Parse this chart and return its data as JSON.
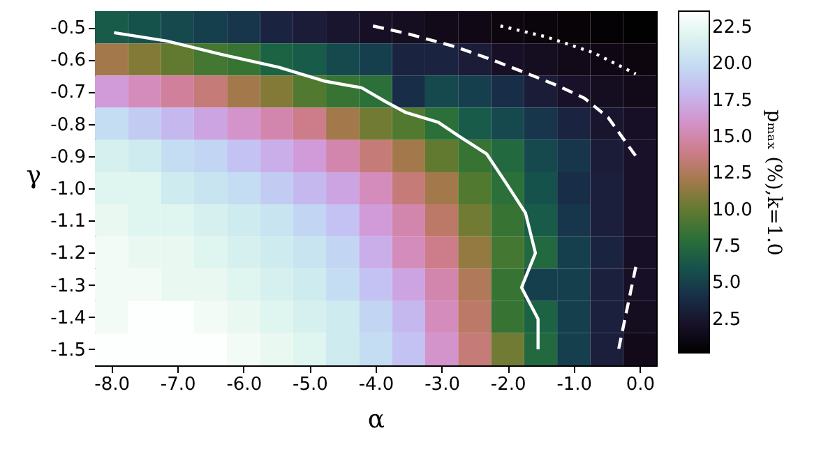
{
  "chart_data": {
    "type": "heatmap",
    "xlabel": "α",
    "ylabel": "γ",
    "clabel": "pₘₐₓ (%),k=1.0",
    "x": [
      -8.0,
      -7.5,
      -7.0,
      -6.5,
      -6.0,
      -5.5,
      -5.0,
      -4.5,
      -4.0,
      -3.5,
      -3.0,
      -2.5,
      -2.0,
      -1.5,
      -1.0,
      -0.5,
      0.0
    ],
    "ylim": [
      -1.55,
      -0.45
    ],
    "yticks": [
      -0.5,
      -0.6,
      -0.7,
      -0.8,
      -0.9,
      {
        "value": -1,
        "label": "-1.0"
      },
      -1.1,
      -1.2,
      -1.3,
      -1.4,
      -1.5
    ],
    "cells": [
      [
        6.5,
        6,
        5.5,
        5,
        4.5,
        3.5,
        3,
        2.5,
        2,
        1.8,
        1.5,
        1.3,
        1,
        0.8,
        0.6,
        0.5,
        0.3
      ],
      [
        12,
        11,
        10,
        9,
        8.5,
        7,
        6.5,
        5.5,
        5,
        3.5,
        3.5,
        3,
        2,
        1.8,
        1.5,
        1.2,
        1
      ],
      [
        16.5,
        15.5,
        14.5,
        13.5,
        12,
        11,
        9.5,
        8.5,
        8,
        4,
        5.5,
        5,
        4,
        3,
        2.2,
        1.8,
        1.5
      ],
      [
        20,
        19,
        18,
        17,
        16,
        15,
        14,
        12,
        10.5,
        9.5,
        8,
        6.5,
        5.5,
        4.5,
        3.5,
        2.5,
        2
      ],
      [
        21.5,
        21,
        20,
        19.5,
        18.5,
        17.5,
        16.5,
        15,
        13.5,
        12,
        10,
        8.5,
        7.5,
        5.5,
        4.5,
        3,
        2.2
      ],
      [
        22,
        22,
        21,
        20.5,
        20,
        19,
        18,
        17,
        15.5,
        13.5,
        12,
        9.5,
        8,
        6,
        4,
        3.2,
        2.2
      ],
      [
        22.5,
        22,
        22,
        21.5,
        21,
        20.5,
        19.5,
        18.5,
        16.5,
        15,
        13,
        10.5,
        8.5,
        6.5,
        4.5,
        3.2,
        2.2
      ],
      [
        23,
        22.5,
        22.5,
        22,
        21.5,
        21,
        20.5,
        19.5,
        17.5,
        15.5,
        14,
        11.5,
        9,
        7.5,
        5,
        3.5,
        2
      ],
      [
        23,
        23,
        22.5,
        22.5,
        22,
        21.5,
        21,
        20,
        18.5,
        17,
        15,
        12.5,
        8.5,
        5,
        5,
        3.3,
        2
      ],
      [
        23,
        23.5,
        23.5,
        23,
        22.5,
        22,
        21.5,
        21,
        19.5,
        18,
        15.5,
        13,
        8.5,
        7,
        5,
        3.3,
        1.8
      ],
      [
        23.5,
        23.5,
        23.5,
        23.5,
        23,
        22.5,
        22,
        21,
        20,
        18.5,
        16,
        13.5,
        10.5,
        7.5,
        5,
        3.2,
        1.5
      ]
    ],
    "clim": [
      0.2,
      23.6
    ],
    "cticks": [
      2.5,
      {
        "value": 5,
        "label": "5.0"
      },
      7.5,
      {
        "value": 10,
        "label": "10.0"
      },
      12.5,
      {
        "value": 15,
        "label": "15.0"
      },
      17.5,
      {
        "value": 20,
        "label": "20.0"
      },
      22.5
    ],
    "xlim": [
      -8.25,
      0.25
    ],
    "xticks": [
      {
        "value": -8,
        "label": "-8.0"
      },
      {
        "value": -7,
        "label": "-7.0"
      },
      {
        "value": -6,
        "label": "-6.0"
      },
      {
        "value": -5,
        "label": "-5.0"
      },
      {
        "value": -4,
        "label": "-4.0"
      },
      {
        "value": -3,
        "label": "-3.0"
      },
      {
        "value": -2,
        "label": "-2.0"
      },
      {
        "value": -1,
        "label": "-1.0"
      },
      {
        "value": 0,
        "label": "0.0"
      }
    ],
    "series": [
      {
        "type": "line",
        "color": "#ffffff",
        "line_style": "solid",
        "x": [
          -7.96,
          -7.16,
          -6.32,
          -5.47,
          -4.78,
          -4.21,
          -3.85,
          -3.54,
          -3.05,
          -2.74,
          -2.32,
          -2.04,
          -1.73,
          -1.58,
          -1.79,
          -1.54,
          -1.54
        ],
        "values": [
          -0.517,
          -0.543,
          -0.585,
          -0.624,
          -0.667,
          -0.688,
          -0.731,
          -0.765,
          -0.795,
          -0.838,
          -0.893,
          -0.979,
          -1.077,
          -1.201,
          -1.308,
          -1.406,
          -1.5
        ]
      },
      {
        "type": "line",
        "color": "#ffffff",
        "line_style": "dashed",
        "x": [
          -4.04,
          -3.52,
          -2.8,
          -2.25,
          -1.75,
          -1.26,
          -0.84,
          -0.48,
          -0.27,
          -0.06
        ],
        "values": [
          -0.496,
          -0.52,
          -0.56,
          -0.6,
          -0.64,
          -0.68,
          -0.72,
          -0.78,
          -0.84,
          -0.9
        ]
      },
      {
        "type": "line",
        "color": "#ffffff",
        "line_style": "dotted",
        "x": [
          -2.11,
          -1.41,
          -0.69,
          -0.06
        ],
        "values": [
          -0.496,
          -0.53,
          -0.58,
          -0.645
        ]
      },
      {
        "type": "line",
        "color": "#ffffff",
        "line_style": "dashed",
        "x": [
          -0.06,
          -0.32
        ],
        "values": [
          -1.244,
          -1.5
        ]
      }
    ]
  }
}
